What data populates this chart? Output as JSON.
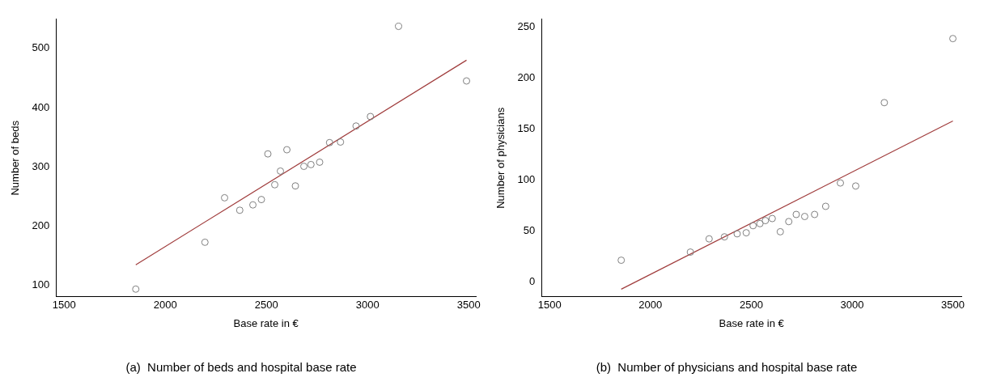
{
  "chart_data": [
    {
      "type": "scatter",
      "title": "(a)  Number of beds and hospital base rate",
      "xlabel": "Base rate in €",
      "ylabel": "Number of beds",
      "xlim": [
        1460,
        3535
      ],
      "xticks": [
        1500,
        2000,
        2500,
        3000,
        3500
      ],
      "ylim": [
        81,
        549
      ],
      "yticks": [
        100,
        200,
        300,
        400,
        500
      ],
      "grid": false,
      "series": [
        {
          "type": "scatter",
          "marker": "circle",
          "color": "#808080",
          "x": [
            1854,
            2196,
            2293,
            2368,
            2433,
            2475,
            2507,
            2541,
            2569,
            2601,
            2643,
            2685,
            2720,
            2763,
            2812,
            2866,
            2943,
            3014,
            3153,
            3489
          ],
          "values": [
            94,
            173,
            248,
            227,
            236,
            245,
            322,
            270,
            293,
            329,
            268,
            301,
            304,
            308,
            341,
            342,
            369,
            385,
            537,
            445
          ]
        },
        {
          "type": "line",
          "color": "#a03c3c",
          "x": [
            1854,
            3489
          ],
          "values": [
            135,
            480
          ]
        }
      ]
    },
    {
      "type": "scatter",
      "title": "(b)  Number of physicians and hospital base rate",
      "xlabel": "Base rate in €",
      "ylabel": "Number of physicians",
      "xlim": [
        1460,
        3542
      ],
      "xticks": [
        1500,
        2000,
        2500,
        3000,
        3500
      ],
      "ylim": [
        -15,
        258
      ],
      "yticks": [
        0,
        50,
        100,
        150,
        200,
        250
      ],
      "grid": false,
      "series": [
        {
          "type": "scatter",
          "marker": "circle",
          "color": "#808080",
          "x": [
            1855,
            2198,
            2291,
            2367,
            2430,
            2475,
            2509,
            2543,
            2570,
            2604,
            2644,
            2686,
            2723,
            2765,
            2814,
            2869,
            2942,
            3018,
            3160,
            3500
          ],
          "values": [
            21,
            29,
            42,
            44,
            47,
            48,
            55,
            57,
            60,
            62,
            49,
            59,
            66,
            64,
            66,
            74,
            97,
            94,
            176,
            239
          ]
        },
        {
          "type": "line",
          "color": "#a03c3c",
          "x": [
            1855,
            3500
          ],
          "values": [
            -7.5,
            158
          ]
        }
      ]
    }
  ]
}
